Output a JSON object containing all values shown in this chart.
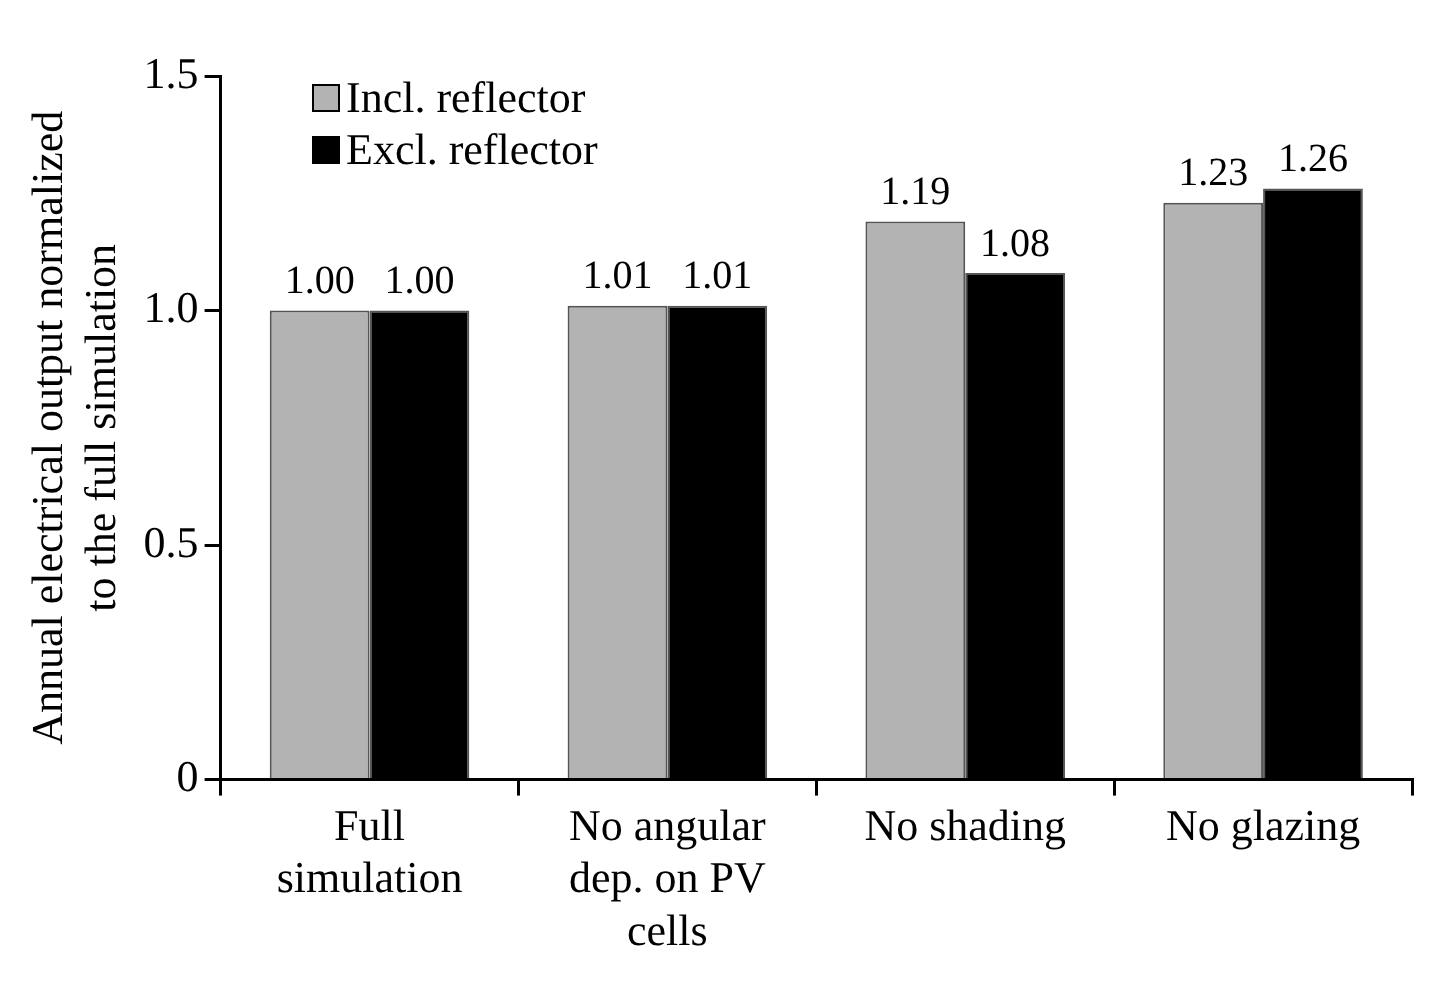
{
  "chart_data": {
    "type": "bar",
    "ylabel": "Annual electrical output normalized to the full simulation",
    "categories": [
      "Full simulation",
      "No angular dep. on PV cells",
      "No shading",
      "No glazing"
    ],
    "series": [
      {
        "name": "Incl. reflector",
        "color": "#b3b3b3",
        "values": [
          1.0,
          1.01,
          1.19,
          1.23
        ],
        "value_labels": [
          "1.00",
          "1.01",
          "1.19",
          "1.23"
        ]
      },
      {
        "name": "Excl. reflector",
        "color": "#000000",
        "values": [
          1.0,
          1.01,
          1.08,
          1.26
        ],
        "value_labels": [
          "1.00",
          "1.01",
          "1.08",
          "1.26"
        ]
      }
    ],
    "ylim": [
      0,
      1.5
    ],
    "yticks": [
      0,
      {
        "value": 0.5,
        "label": "0.5"
      },
      {
        "value": 1,
        "label": "1.0"
      },
      {
        "value": 1.5,
        "label": "1.5"
      }
    ],
    "grid": false,
    "legend": "top left"
  }
}
